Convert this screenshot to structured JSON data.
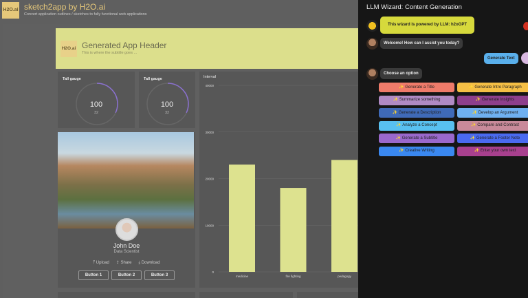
{
  "app": {
    "logo": "H2O.ai",
    "title": "sketch2app by H2O.ai",
    "subtitle": "Convert application outlines / sketches to fully functional web applications"
  },
  "generated": {
    "logo": "H2O.ai",
    "title": "Generated App Header",
    "subtitle": "This is where the subtitle goes ..."
  },
  "gauges": [
    {
      "label": "Tall gauge",
      "value": "100",
      "sub": "32",
      "fraction": 0.32
    },
    {
      "label": "Tall gauge",
      "value": "100",
      "sub": "32",
      "fraction": 0.32
    }
  ],
  "profile": {
    "name": "John Doe",
    "role": "Data Scientist",
    "actions": [
      "Upload",
      "Share",
      "Download"
    ],
    "buttons": [
      "Button 1",
      "Button 2",
      "Button 3"
    ]
  },
  "chart_data": {
    "type": "bar",
    "title": "Interval",
    "categories": [
      "medicine",
      "fire fighting",
      "pedagogy"
    ],
    "values": [
      23000,
      18000,
      24000
    ],
    "ylim": [
      0,
      40000
    ],
    "yticks": [
      "0",
      "10000",
      "20000",
      "30000",
      "40000"
    ],
    "grid": true,
    "color": "#dde28f"
  },
  "wizard": {
    "title": "LLM Wizard: Content Generation",
    "powered": "This wizard is powered by LLM: h2oGPT",
    "welcome": "Welcome! How can I assist you today?",
    "user_msg": "Generate Text",
    "choose": "Choose an option",
    "options": [
      {
        "label": "✨ Generate a Title",
        "color": "#ef7b6a"
      },
      {
        "label": "✨ Generate Intro Paragraph",
        "color": "#f5bf45"
      },
      {
        "label": "✨ Summarize something",
        "color": "#b08ac4"
      },
      {
        "label": "✨ Generate Insights",
        "color": "#8e3f8c"
      },
      {
        "label": "✨ Generate a Description",
        "color": "#3f6ab8"
      },
      {
        "label": "✨ Develop an Argument",
        "color": "#6fb0f0"
      },
      {
        "label": "✨ Analyze a Concept",
        "color": "#58c0f0"
      },
      {
        "label": "✨ Compare and Contrast",
        "color": "#c98a9a"
      },
      {
        "label": "✨ Generate a Subtitle",
        "color": "#9a68cc"
      },
      {
        "label": "✨ Generate a Footer Note",
        "color": "#4a6af0"
      },
      {
        "label": "✨ Creative Writing",
        "color": "#3a88f0"
      },
      {
        "label": "✨ Enter your own text",
        "color": "#a8408e"
      }
    ]
  }
}
